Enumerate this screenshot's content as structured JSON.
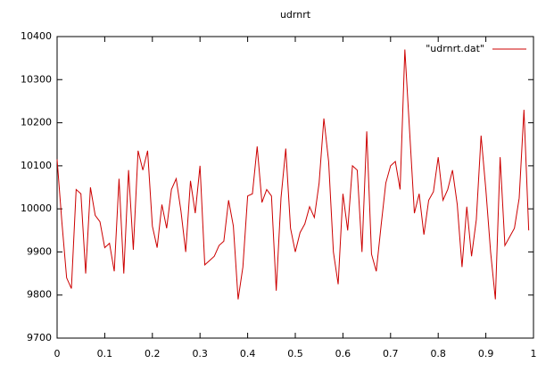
{
  "chart_data": {
    "type": "line",
    "title": "udrnrt",
    "x": [
      0,
      0.01,
      0.02,
      0.03,
      0.04,
      0.05,
      0.06,
      0.07,
      0.08,
      0.09,
      0.1,
      0.11,
      0.12,
      0.13,
      0.14,
      0.15,
      0.16,
      0.17,
      0.18,
      0.19,
      0.2,
      0.21,
      0.22,
      0.23,
      0.24,
      0.25,
      0.26,
      0.27,
      0.28,
      0.29,
      0.3,
      0.31,
      0.32,
      0.33,
      0.34,
      0.35,
      0.36,
      0.37,
      0.38,
      0.39,
      0.4,
      0.41,
      0.42,
      0.43,
      0.44,
      0.45,
      0.46,
      0.47,
      0.48,
      0.49,
      0.5,
      0.51,
      0.52,
      0.53,
      0.54,
      0.55,
      0.56,
      0.57,
      0.58,
      0.59,
      0.6,
      0.61,
      0.62,
      0.63,
      0.64,
      0.65,
      0.66,
      0.67,
      0.68,
      0.69,
      0.7,
      0.71,
      0.72,
      0.73,
      0.74,
      0.75,
      0.76,
      0.77,
      0.78,
      0.79,
      0.8,
      0.81,
      0.82,
      0.83,
      0.84,
      0.85,
      0.86,
      0.87,
      0.88,
      0.89,
      0.9,
      0.91,
      0.92,
      0.93,
      0.94,
      0.95,
      0.96,
      0.97,
      0.98,
      0.99
    ],
    "series": [
      {
        "name": "\"udrnrt.dat\"",
        "color": "#cc0000",
        "values": [
          10115,
          9970,
          9840,
          9815,
          10045,
          10035,
          9850,
          10050,
          9985,
          9970,
          9910,
          9920,
          9855,
          10070,
          9850,
          10090,
          9905,
          10135,
          10090,
          10135,
          9960,
          9910,
          10010,
          9955,
          10045,
          10070,
          9995,
          9900,
          10065,
          9990,
          10100,
          9870,
          9880,
          9890,
          9915,
          9925,
          10020,
          9960,
          9790,
          9865,
          10030,
          10035,
          10145,
          10015,
          10045,
          10030,
          9810,
          10025,
          10140,
          9955,
          9900,
          9945,
          9965,
          10005,
          9980,
          10060,
          10210,
          10110,
          9900,
          9825,
          10035,
          9950,
          10100,
          10090,
          9900,
          10180,
          9895,
          9855,
          9960,
          10060,
          10100,
          10110,
          10045,
          10370,
          10180,
          9990,
          10035,
          9940,
          10020,
          10040,
          10120,
          10020,
          10045,
          10090,
          10010,
          9865,
          10005,
          9890,
          9975,
          10170,
          10045,
          9900,
          9790,
          10120,
          9915,
          9935,
          9955,
          10025,
          10230,
          9950
        ]
      }
    ],
    "xlim": [
      0,
      1
    ],
    "xticks": [
      0,
      0.1,
      0.2,
      0.3,
      0.4,
      0.5,
      0.6,
      0.7,
      0.8,
      0.9,
      1
    ],
    "ylim": [
      9700,
      10400
    ],
    "yticks": [
      9700,
      9800,
      9900,
      10000,
      10100,
      10200,
      10300,
      10400
    ],
    "legend": "top-right"
  }
}
